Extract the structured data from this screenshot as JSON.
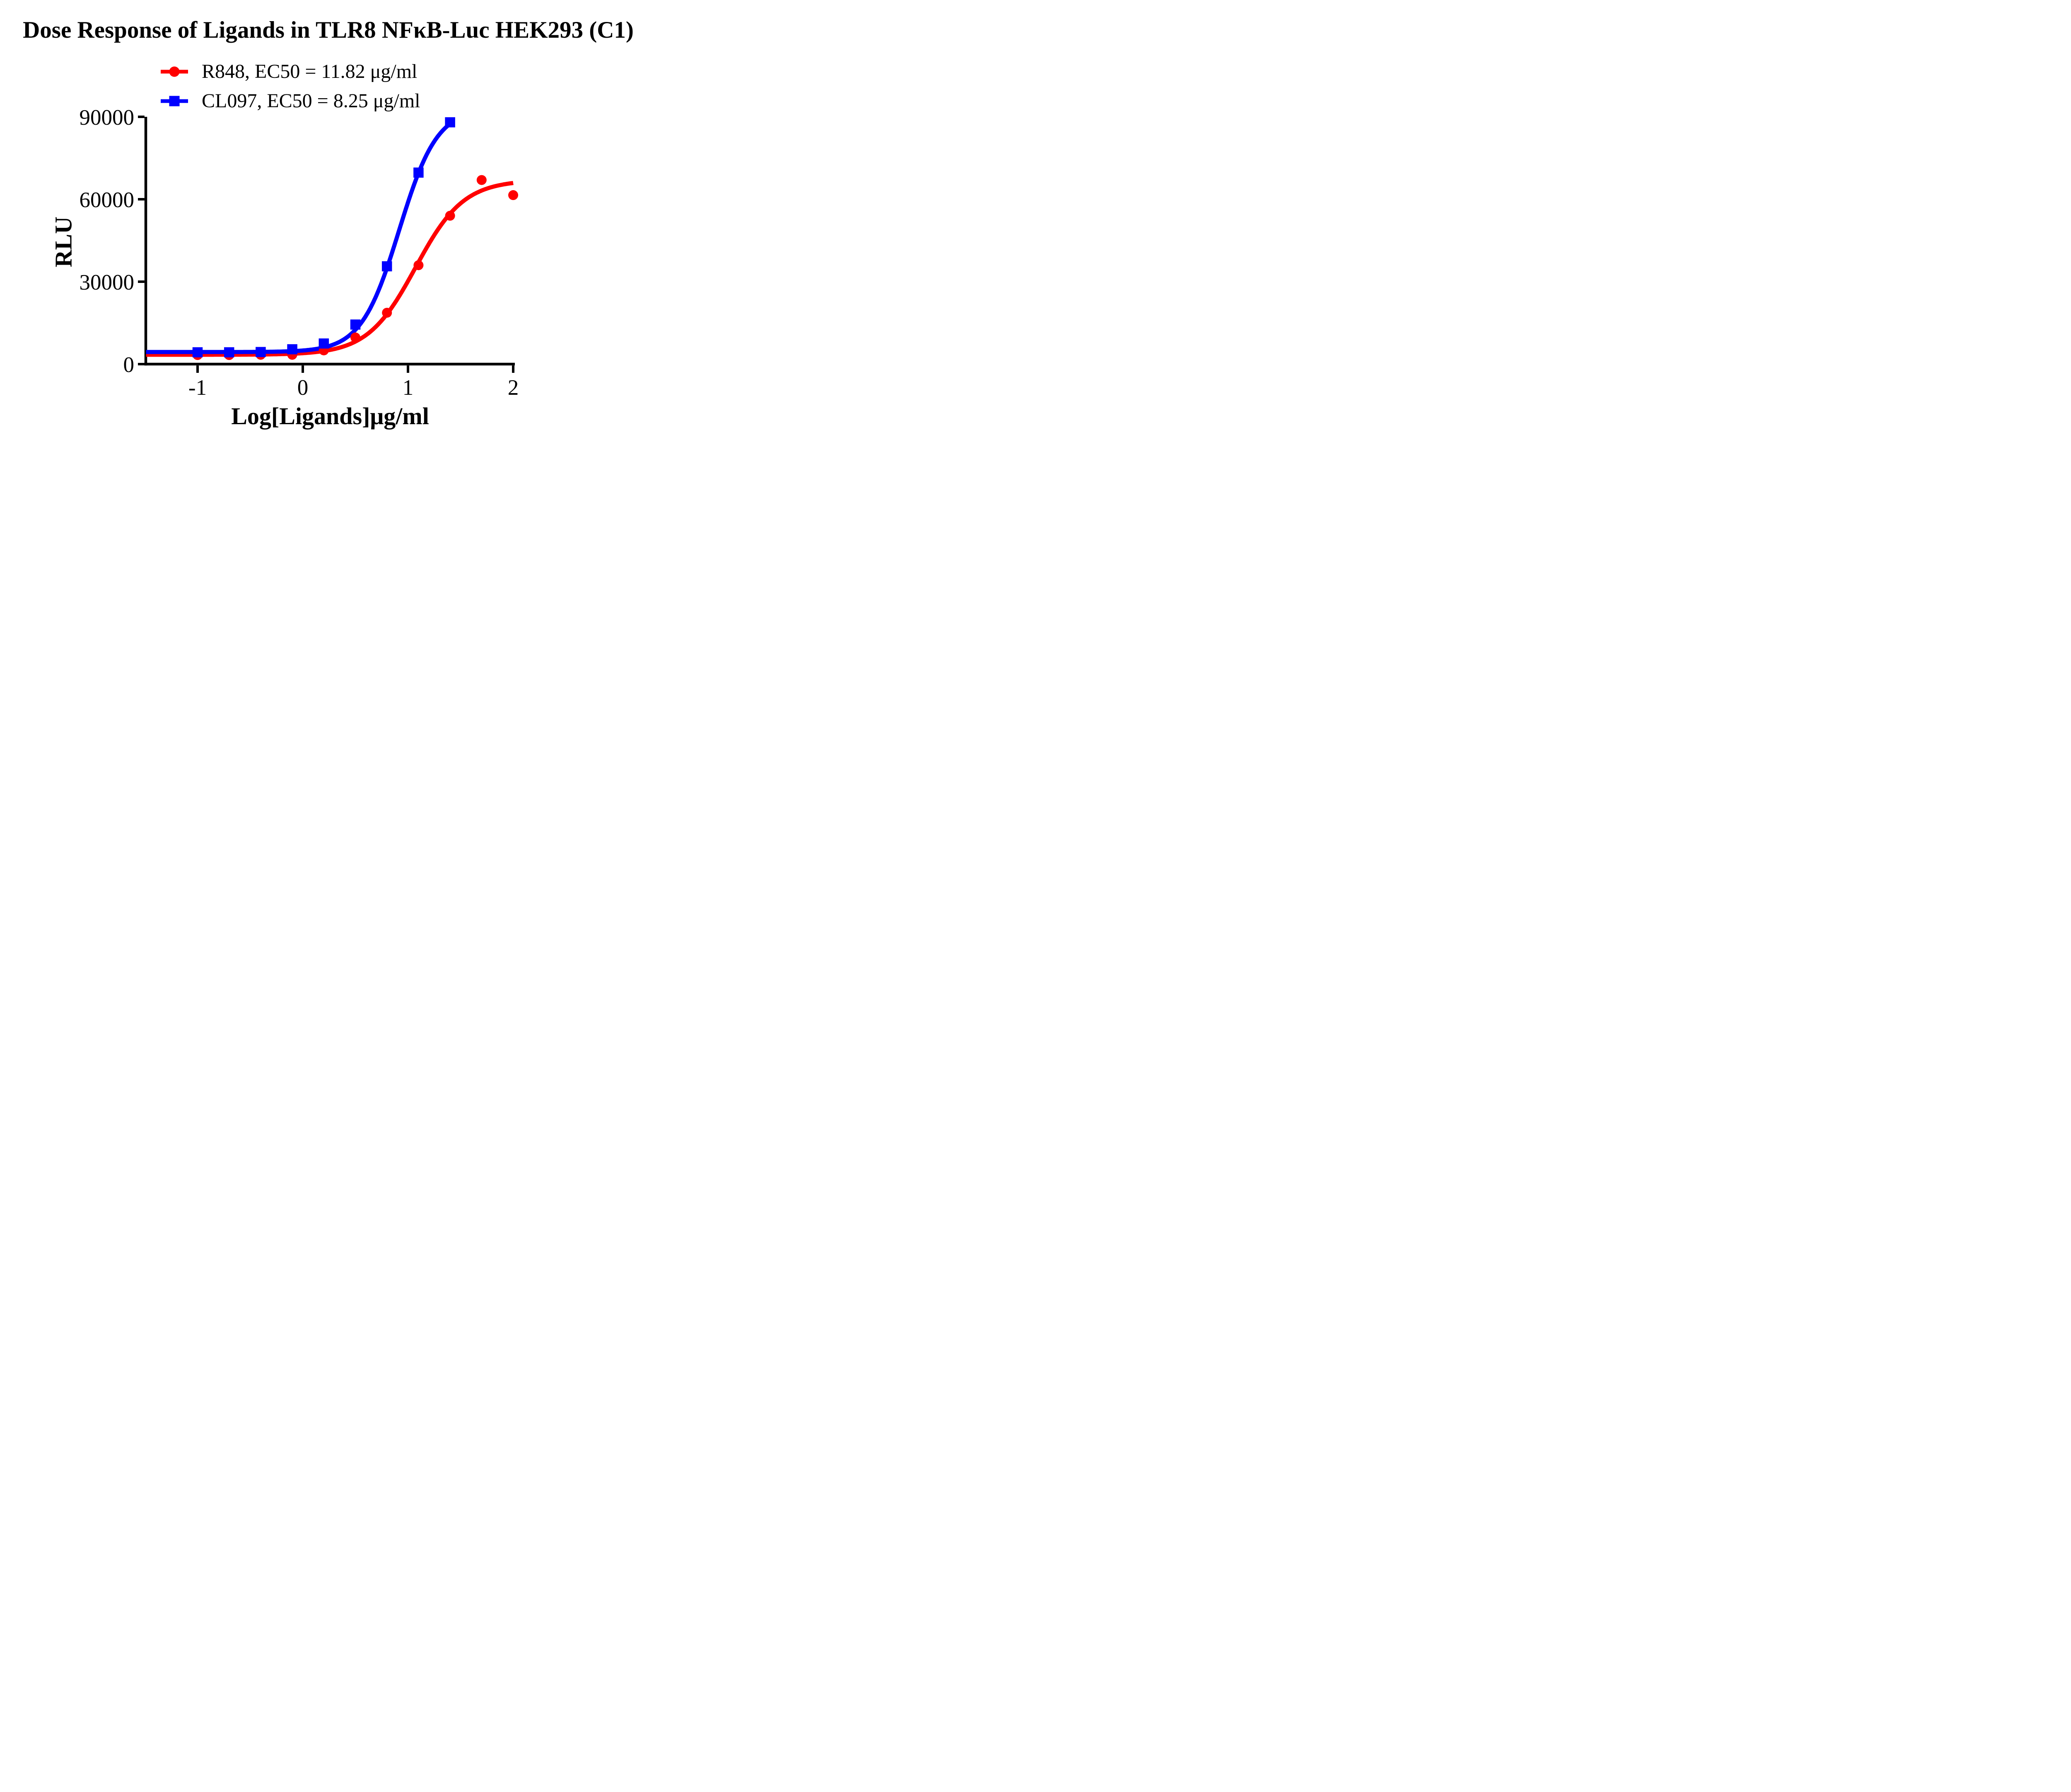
{
  "chart_data": {
    "type": "scatter",
    "title": "Dose Response of Ligands in TLR8 NFκB-Luc HEK293 (C1)",
    "xlabel": "Log[Ligands]μg/ml",
    "ylabel": "RLU",
    "xlim": [
      -1.5,
      2.02
    ],
    "ylim": [
      0,
      90000
    ],
    "x_ticks": [
      -1,
      0,
      1,
      2
    ],
    "y_ticks": [
      0,
      30000,
      60000,
      90000
    ],
    "grid": false,
    "legend_position": "above-plot-left",
    "series": [
      {
        "name": "R848, EC50 = 11.82 μg/ml",
        "ligand": "r848",
        "ec50_ugml": 11.82,
        "color": "#FF0000",
        "marker": "circle",
        "x": [
          -1.0,
          -0.7,
          -0.4,
          -0.1,
          0.2,
          0.5,
          0.8,
          1.1,
          1.4,
          1.7,
          2.0
        ],
        "y": [
          3300,
          3300,
          3400,
          3400,
          5000,
          9700,
          18700,
          36000,
          54000,
          67000,
          61500
        ],
        "fit": {
          "model": "4PL",
          "bottom": 3400,
          "top": 67000,
          "logec50": 1.0726,
          "hill": 1.9,
          "x_start": -1.49,
          "x_end": 2.0
        }
      },
      {
        "name": "CL097, EC50 = 8.25 μg/ml",
        "ligand": "cl097",
        "ec50_ugml": 8.25,
        "color": "#0000FF",
        "marker": "square",
        "x": [
          -1.0,
          -0.7,
          -0.4,
          -0.1,
          0.2,
          0.5,
          0.8,
          1.1,
          1.4
        ],
        "y": [
          4300,
          4300,
          4400,
          5400,
          7500,
          14400,
          35600,
          69700,
          88000
        ],
        "fit": {
          "model": "4PL",
          "bottom": 4400,
          "top": 93200,
          "logec50": 0.9165,
          "hill": 2.4,
          "x_start": -1.49,
          "x_end": 1.4
        }
      }
    ]
  }
}
